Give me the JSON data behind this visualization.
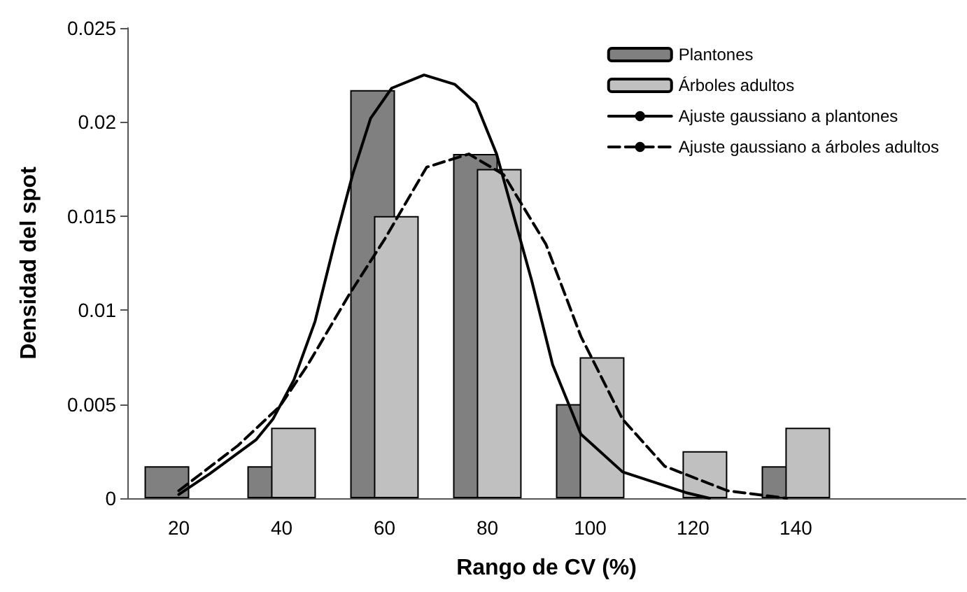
{
  "chart_data": {
    "type": "bar",
    "xlabel": "Rango de CV (%)",
    "ylabel": "Densidad del spot",
    "x": [
      20,
      40,
      60,
      80,
      100,
      120,
      140
    ],
    "xlim": [
      10,
      173
    ],
    "xticks": [
      20,
      40,
      60,
      80,
      100,
      120,
      140
    ],
    "ylim": [
      0,
      0.025
    ],
    "yticks": [
      0,
      0.005,
      0.01,
      0.015,
      0.02,
      0.025
    ],
    "grid": false,
    "legend": "top right",
    "marker": "none",
    "series": [
      {
        "name": "Plantones",
        "color": "#808080",
        "values": [
          0.0017,
          0.0017,
          0.0217,
          0.0183,
          0.005,
          null,
          0.0017
        ]
      },
      {
        "name": "Árboles adultos",
        "color": "#c0c0c0",
        "values": [
          null,
          0.00375,
          0.015,
          0.0175,
          0.0075,
          0.0025,
          0.00375
        ]
      },
      {
        "name": "Ajuste gaussiano a plantones",
        "type": "line",
        "color": "#000000",
        "line_style": "solid",
        "x": [
          20,
          26,
          35,
          38.3,
          42.4,
          46.5,
          50.5,
          53.8,
          57.3,
          61.4,
          67.7,
          73.7,
          77.8,
          81.8,
          88.6,
          92.7,
          98.2,
          106.3,
          118.6,
          123.2
        ],
        "values": [
          0.0002,
          0.0013,
          0.0031,
          0.0042,
          0.0063,
          0.0094,
          0.0138,
          0.0172,
          0.0202,
          0.0218,
          0.0225,
          0.022,
          0.021,
          0.0183,
          0.0116,
          0.0071,
          0.0034,
          0.0014,
          0.0003,
          0
        ]
      },
      {
        "name": "Ajuste gaussiano a árboles adultos",
        "type": "line",
        "color": "#000000",
        "line_style": "dashed",
        "x": [
          20,
          31.5,
          39.7,
          45.1,
          53.3,
          60.1,
          68.2,
          76.4,
          83.2,
          91.4,
          98.2,
          106.3,
          114.5,
          126.7,
          138.2
        ],
        "values": [
          0.0004,
          0.0028,
          0.0049,
          0.0071,
          0.0109,
          0.0138,
          0.0176,
          0.0183,
          0.0172,
          0.0135,
          0.0086,
          0.0042,
          0.0017,
          0.0004,
          0
        ]
      }
    ]
  }
}
